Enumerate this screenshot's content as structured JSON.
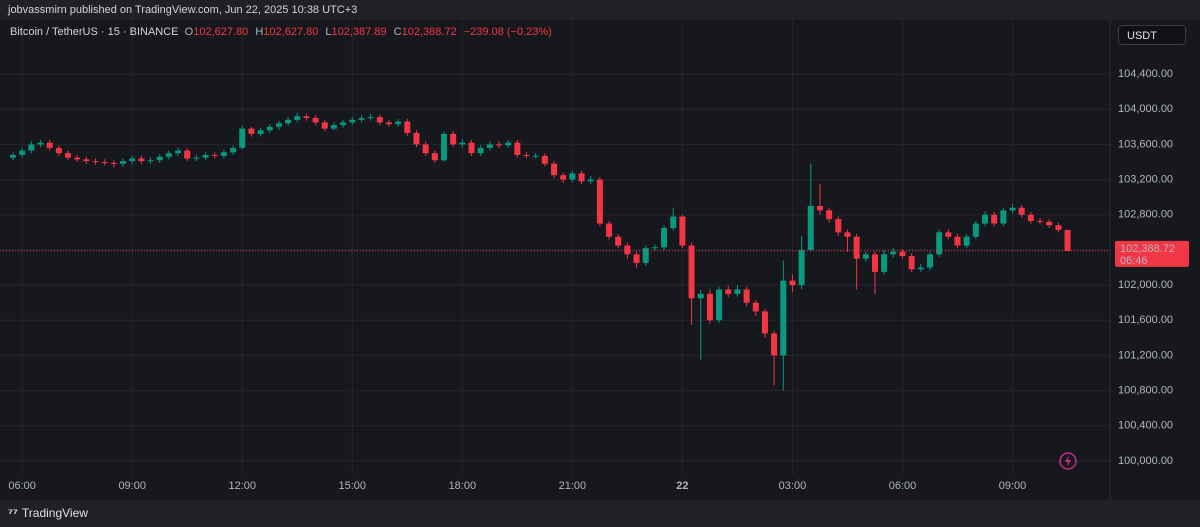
{
  "header": {
    "text": "jobvassmirn published on TradingView.com, Jun 22, 2025 10:38 UTC+3"
  },
  "footer": {
    "brand": "TradingView"
  },
  "chart_data": {
    "type": "candlestick",
    "legend_title": "Bitcoin / TetherUS · 15 · BINANCE",
    "legend": {
      "open_key": "O",
      "open": "102,627.80",
      "high_key": "H",
      "high": "102,627.80",
      "low_key": "L",
      "low": "102,387.89",
      "close_key": "C",
      "close": "102,388.72",
      "change": "−239.08 (−0.23%)"
    },
    "currency": "USDT",
    "last_price_label": "102,388.72",
    "countdown": "06:46",
    "up_color": "#089981",
    "down_color": "#f23645",
    "grid": true,
    "ylim": [
      99840,
      105015
    ],
    "yticks": [
      {
        "value": 100000,
        "label": "100,000.00"
      },
      {
        "value": 100400,
        "label": "100,400.00"
      },
      {
        "value": 100800,
        "label": "100,800.00"
      },
      {
        "value": 101200,
        "label": "101,200.00"
      },
      {
        "value": 101600,
        "label": "101,600.00"
      },
      {
        "value": 102000,
        "label": "102,000.00"
      },
      {
        "value": 102400,
        "label": "102,400.00"
      },
      {
        "value": 102800,
        "label": "102,800.00"
      },
      {
        "value": 103200,
        "label": "103,200.00"
      },
      {
        "value": 103600,
        "label": "103,600.00"
      },
      {
        "value": 104000,
        "label": "104,000.00"
      },
      {
        "value": 104400,
        "label": "104,400.00"
      }
    ],
    "categories": [
      null,
      "06:00",
      null,
      null,
      null,
      null,
      null,
      null,
      null,
      null,
      null,
      null,
      null,
      "09:00",
      null,
      null,
      null,
      null,
      null,
      null,
      null,
      null,
      null,
      null,
      null,
      "12:00",
      null,
      null,
      null,
      null,
      null,
      null,
      null,
      null,
      null,
      null,
      null,
      "15:00",
      null,
      null,
      null,
      null,
      null,
      null,
      null,
      null,
      null,
      null,
      null,
      "18:00",
      null,
      null,
      null,
      null,
      null,
      null,
      null,
      null,
      null,
      null,
      null,
      "21:00",
      null,
      null,
      null,
      null,
      null,
      null,
      null,
      null,
      null,
      null,
      null,
      "22",
      null,
      null,
      null,
      null,
      null,
      null,
      null,
      null,
      null,
      null,
      null,
      "03:00",
      null,
      null,
      null,
      null,
      null,
      null,
      null,
      null,
      null,
      null,
      null,
      "06:00",
      null,
      null,
      null,
      null,
      null,
      null,
      null,
      null,
      null,
      null,
      null,
      "09:00",
      null,
      null,
      null,
      null,
      null,
      null
    ],
    "open": [
      103450,
      103480,
      103530,
      103600,
      103620,
      103560,
      103500,
      103450,
      103430,
      103410,
      103400,
      103390,
      103380,
      103410,
      103440,
      103410,
      103420,
      103460,
      103500,
      103530,
      103440,
      103450,
      103480,
      103470,
      103510,
      103560,
      103780,
      103720,
      103760,
      103800,
      103840,
      103880,
      103920,
      103900,
      103850,
      103780,
      103820,
      103850,
      103880,
      103900,
      103910,
      103850,
      103830,
      103860,
      103730,
      103600,
      103500,
      103420,
      103720,
      103600,
      103620,
      103500,
      103560,
      103600,
      103590,
      103620,
      103480,
      103470,
      103470,
      103380,
      103250,
      103200,
      103270,
      103180,
      103200,
      102700,
      102550,
      102450,
      102350,
      102250,
      102420,
      102430,
      102650,
      102780,
      102450,
      101850,
      101900,
      101600,
      101950,
      101900,
      101950,
      101800,
      101700,
      101450,
      101200,
      102050,
      102000,
      102400,
      102900,
      102850,
      102750,
      102600,
      102550,
      102300,
      102350,
      102150,
      102350,
      102380,
      102330,
      102180,
      102200,
      102350,
      102600,
      102550,
      102450,
      102550,
      102700,
      102800,
      102700,
      102850,
      102880,
      102800,
      102730,
      102720,
      102680,
      102627.8
    ],
    "high": [
      103510,
      103560,
      103640,
      103650,
      103650,
      103590,
      103530,
      103480,
      103460,
      103440,
      103430,
      103420,
      103440,
      103470,
      103470,
      103450,
      103490,
      103530,
      103560,
      103560,
      103480,
      103510,
      103510,
      103540,
      103590,
      103810,
      103800,
      103790,
      103830,
      103870,
      103910,
      103960,
      103950,
      103930,
      103880,
      103850,
      103880,
      103910,
      103930,
      103950,
      103940,
      103880,
      103890,
      103890,
      103760,
      103630,
      103530,
      103750,
      103750,
      103660,
      103650,
      103590,
      103630,
      103640,
      103650,
      103650,
      103510,
      103500,
      103500,
      103410,
      103280,
      103300,
      103300,
      103240,
      103230,
      102730,
      102580,
      102480,
      102380,
      102450,
      102460,
      102680,
      102880,
      102800,
      102480,
      101950,
      101950,
      101980,
      101990,
      102000,
      101980,
      101830,
      101730,
      101480,
      102280,
      102120,
      102560,
      103380,
      103150,
      102880,
      102780,
      102630,
      102580,
      102380,
      102380,
      102400,
      102420,
      102410,
      102360,
      102240,
      102380,
      102630,
      102640,
      102580,
      102580,
      102730,
      102840,
      102830,
      102880,
      102920,
      102910,
      102830,
      102760,
      102750,
      102710,
      102627.8
    ],
    "low": [
      103420,
      103450,
      103500,
      103570,
      103530,
      103470,
      103420,
      103400,
      103380,
      103370,
      103360,
      103340,
      103350,
      103380,
      103380,
      103380,
      103390,
      103430,
      103470,
      103410,
      103410,
      103420,
      103440,
      103440,
      103480,
      103540,
      103690,
      103690,
      103730,
      103770,
      103810,
      103850,
      103870,
      103820,
      103750,
      103760,
      103790,
      103820,
      103850,
      103870,
      103820,
      103800,
      103800,
      103700,
      103570,
      103470,
      103390,
      103400,
      103570,
      103570,
      103470,
      103470,
      103530,
      103560,
      103560,
      103450,
      103440,
      103440,
      103350,
      103220,
      103160,
      103170,
      103150,
      103150,
      102670,
      102520,
      102420,
      102300,
      102200,
      102220,
      102390,
      102400,
      102620,
      102420,
      101550,
      101150,
      101560,
      101570,
      101860,
      101870,
      101760,
      101650,
      101400,
      100860,
      100800,
      101920,
      101950,
      102380,
      102800,
      102710,
      102560,
      102380,
      101950,
      102270,
      101900,
      102120,
      102320,
      102300,
      102150,
      102150,
      102170,
      102320,
      102520,
      102420,
      102420,
      102520,
      102670,
      102670,
      102670,
      102820,
      102770,
      102700,
      102690,
      102650,
      102600,
      102387.89
    ],
    "close": [
      103480,
      103530,
      103600,
      103620,
      103560,
      103500,
      103450,
      103430,
      103410,
      103400,
      103390,
      103380,
      103410,
      103440,
      103410,
      103420,
      103460,
      103500,
      103530,
      103440,
      103450,
      103480,
      103470,
      103510,
      103560,
      103780,
      103720,
      103760,
      103800,
      103840,
      103880,
      103920,
      103900,
      103850,
      103780,
      103820,
      103850,
      103880,
      103900,
      103910,
      103850,
      103830,
      103860,
      103730,
      103600,
      103500,
      103420,
      103720,
      103600,
      103620,
      103500,
      103560,
      103600,
      103590,
      103620,
      103480,
      103470,
      103470,
      103380,
      103250,
      103200,
      103270,
      103180,
      103200,
      102700,
      102550,
      102450,
      102350,
      102250,
      102420,
      102430,
      102650,
      102780,
      102450,
      101850,
      101900,
      101600,
      101950,
      101900,
      101950,
      101800,
      101700,
      101450,
      101200,
      102050,
      102000,
      102400,
      102900,
      102850,
      102750,
      102600,
      102550,
      102300,
      102350,
      102150,
      102350,
      102380,
      102330,
      102180,
      102200,
      102350,
      102600,
      102550,
      102450,
      102550,
      102700,
      102800,
      102700,
      102850,
      102880,
      102800,
      102730,
      102720,
      102680,
      102627.8,
      102388.72
    ]
  }
}
